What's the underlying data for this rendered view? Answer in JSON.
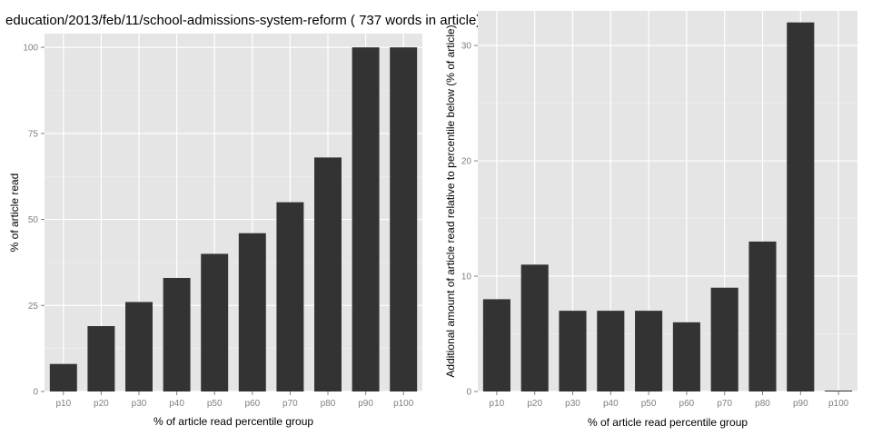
{
  "title": "education/2013/feb/11/school-admissions-system-reform ( 737 words in article)",
  "chart_data": [
    {
      "type": "bar",
      "categories": [
        "p10",
        "p20",
        "p30",
        "p40",
        "p50",
        "p60",
        "p70",
        "p80",
        "p90",
        "p100"
      ],
      "values": [
        8,
        19,
        26,
        33,
        40,
        46,
        55,
        68,
        100,
        100
      ],
      "xlabel": "% of article read percentile group",
      "ylabel": "% of article read",
      "ylim": [
        0,
        104
      ],
      "yticks": [
        0,
        25,
        50,
        75,
        100
      ],
      "grid": true,
      "bar_color": "#333333",
      "panel_color": "#e5e5e5"
    },
    {
      "type": "bar",
      "categories": [
        "p10",
        "p20",
        "p30",
        "p40",
        "p50",
        "p60",
        "p70",
        "p80",
        "p90",
        "p100"
      ],
      "values": [
        8,
        11,
        7,
        7,
        7,
        6,
        9,
        13,
        32,
        0
      ],
      "xlabel": "% of article read percentile group",
      "ylabel": "Additional amount of article read relative to percentile below (% of article)",
      "ylim": [
        0,
        33
      ],
      "yticks": [
        0,
        10,
        20,
        30
      ],
      "grid": true,
      "bar_color": "#333333",
      "panel_color": "#e5e5e5"
    }
  ]
}
